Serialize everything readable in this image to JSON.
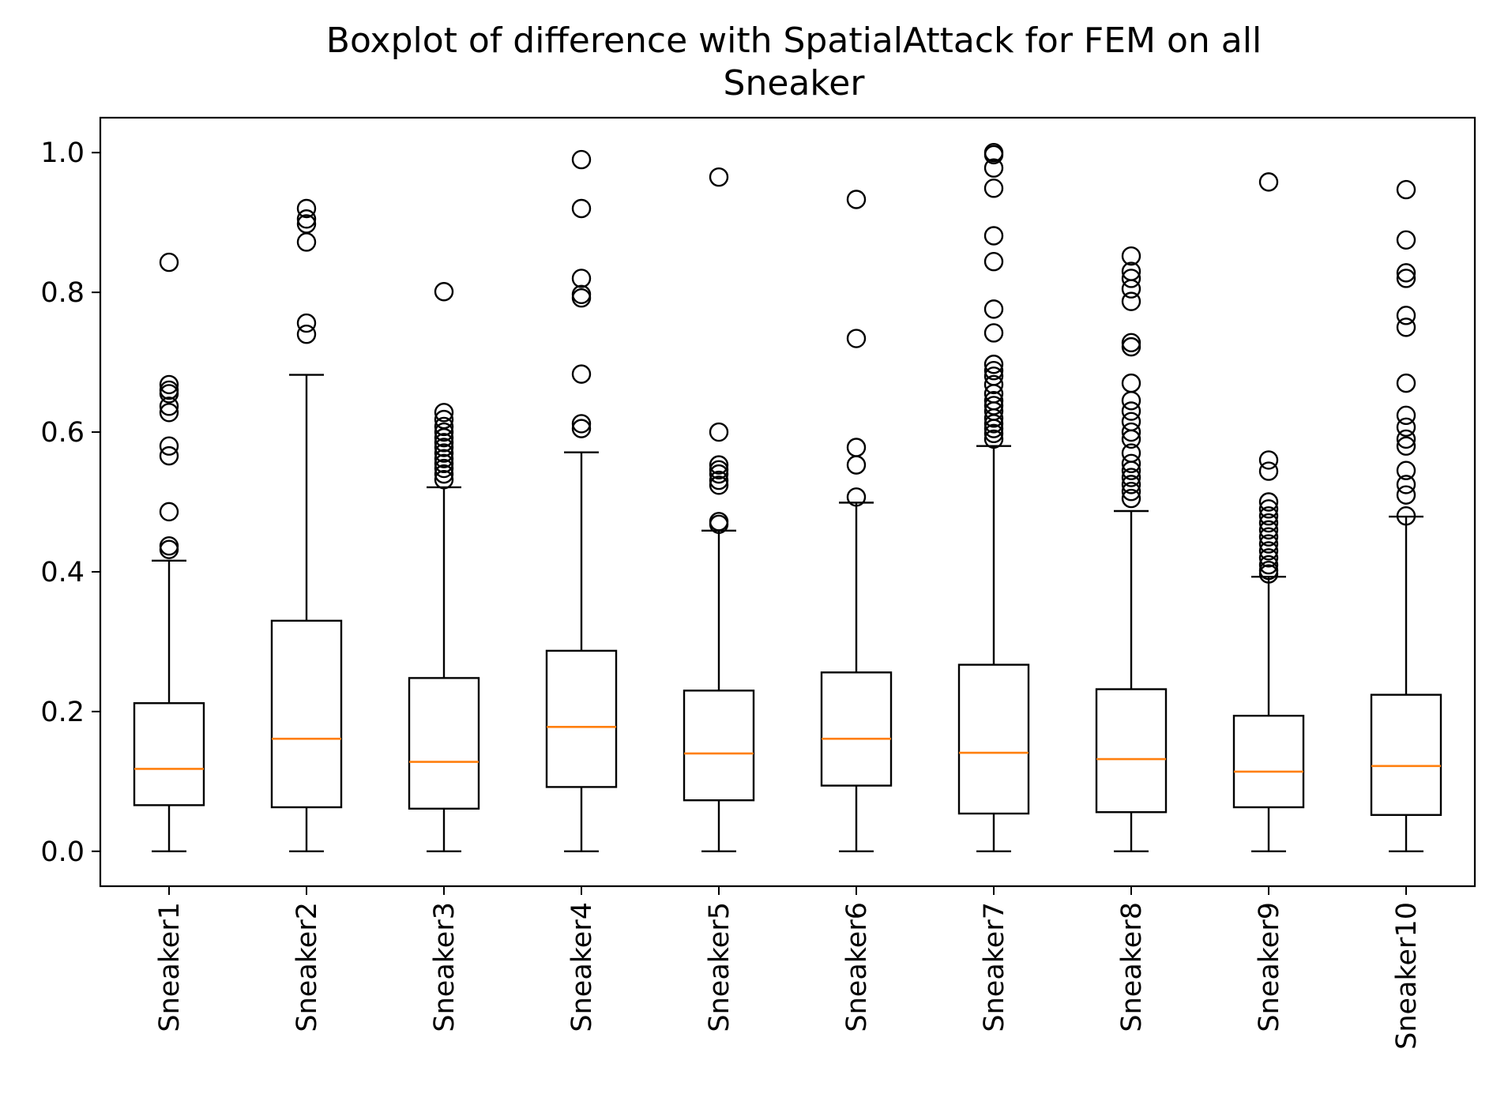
{
  "chart_data": {
    "type": "boxplot",
    "title_lines": [
      "Boxplot of difference with SpatialAttack for FEM on all",
      "Sneaker"
    ],
    "xlabel": "",
    "ylabel": "",
    "ylim": [
      -0.05,
      1.05
    ],
    "yticks": [
      0.0,
      0.2,
      0.4,
      0.6,
      0.8,
      1.0
    ],
    "ytick_labels": [
      "0.0",
      "0.2",
      "0.4",
      "0.6",
      "0.8",
      "1.0"
    ],
    "grid": false,
    "colors": {
      "box": "#000000",
      "median": "#ff7f0e",
      "flier": "#000000"
    },
    "categories": [
      "Sneaker1",
      "Sneaker2",
      "Sneaker3",
      "Sneaker4",
      "Sneaker5",
      "Sneaker6",
      "Sneaker7",
      "Sneaker8",
      "Sneaker9",
      "Sneaker10"
    ],
    "boxes": [
      {
        "whislo": 0.0,
        "q1": 0.066,
        "med": 0.118,
        "q3": 0.212,
        "whishi": 0.416,
        "fliers": [
          0.843,
          0.668,
          0.66,
          0.655,
          0.637,
          0.628,
          0.58,
          0.566,
          0.486,
          0.437,
          0.432
        ]
      },
      {
        "whislo": 0.0,
        "q1": 0.063,
        "med": 0.161,
        "q3": 0.33,
        "whishi": 0.682,
        "fliers": [
          0.92,
          0.905,
          0.898,
          0.872,
          0.756,
          0.74
        ]
      },
      {
        "whislo": 0.0,
        "q1": 0.061,
        "med": 0.128,
        "q3": 0.248,
        "whishi": 0.521,
        "fliers": [
          0.801,
          0.628,
          0.618,
          0.608,
          0.6,
          0.592,
          0.585,
          0.578,
          0.57,
          0.562,
          0.555,
          0.548,
          0.54,
          0.532
        ]
      },
      {
        "whislo": 0.0,
        "q1": 0.092,
        "med": 0.178,
        "q3": 0.287,
        "whishi": 0.571,
        "fliers": [
          0.99,
          0.92,
          0.82,
          0.797,
          0.792,
          0.683,
          0.612,
          0.605
        ]
      },
      {
        "whislo": 0.0,
        "q1": 0.073,
        "med": 0.14,
        "q3": 0.23,
        "whishi": 0.459,
        "fliers": [
          0.965,
          0.6,
          0.553,
          0.546,
          0.54,
          0.531,
          0.524,
          0.472,
          0.468
        ]
      },
      {
        "whislo": 0.0,
        "q1": 0.094,
        "med": 0.161,
        "q3": 0.256,
        "whishi": 0.499,
        "fliers": [
          0.933,
          0.734,
          0.578,
          0.553,
          0.507
        ]
      },
      {
        "whislo": 0.0,
        "q1": 0.054,
        "med": 0.141,
        "q3": 0.267,
        "whishi": 0.58,
        "fliers": [
          1.0,
          0.997,
          0.978,
          0.949,
          0.881,
          0.844,
          0.776,
          0.742,
          0.697,
          0.688,
          0.68,
          0.668,
          0.655,
          0.645,
          0.638,
          0.63,
          0.62,
          0.612,
          0.605,
          0.598,
          0.59
        ]
      },
      {
        "whislo": 0.0,
        "q1": 0.056,
        "med": 0.132,
        "q3": 0.232,
        "whishi": 0.487,
        "fliers": [
          0.852,
          0.83,
          0.82,
          0.805,
          0.787,
          0.728,
          0.722,
          0.67,
          0.645,
          0.63,
          0.615,
          0.6,
          0.59,
          0.57,
          0.555,
          0.545,
          0.535,
          0.525,
          0.515,
          0.505
        ]
      },
      {
        "whislo": 0.0,
        "q1": 0.063,
        "med": 0.114,
        "q3": 0.194,
        "whishi": 0.393,
        "fliers": [
          0.958,
          0.56,
          0.544,
          0.5,
          0.49,
          0.48,
          0.47,
          0.46,
          0.45,
          0.44,
          0.43,
          0.42,
          0.41,
          0.402,
          0.397
        ]
      },
      {
        "whislo": 0.0,
        "q1": 0.052,
        "med": 0.122,
        "q3": 0.224,
        "whishi": 0.479,
        "fliers": [
          0.947,
          0.875,
          0.828,
          0.82,
          0.767,
          0.75,
          0.67,
          0.624,
          0.607,
          0.59,
          0.58,
          0.545,
          0.525,
          0.51,
          0.48
        ]
      }
    ]
  }
}
